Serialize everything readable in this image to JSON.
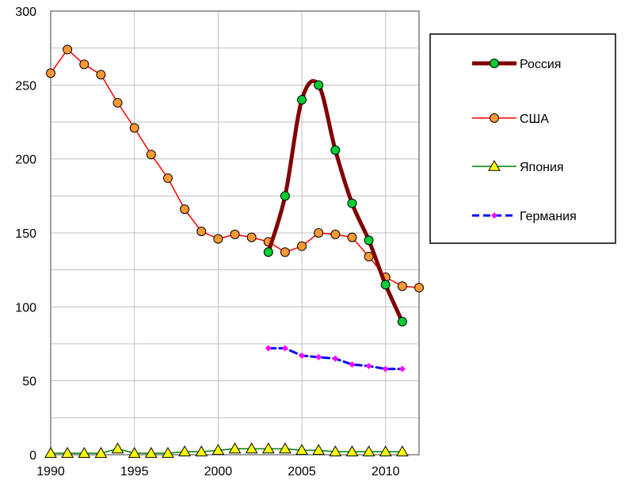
{
  "chart_data": {
    "type": "line",
    "title": "",
    "xlabel": "",
    "ylabel": "",
    "xlim": [
      1990,
      2012
    ],
    "ylim": [
      0,
      300
    ],
    "x_ticks": [
      1990,
      1995,
      2000,
      2005,
      2010
    ],
    "y_ticks": [
      0,
      50,
      100,
      150,
      200,
      250,
      300
    ],
    "grid": true,
    "legend_position": "right",
    "series": [
      {
        "name": "Россия",
        "color": "#800000",
        "marker_fill": "#00cc33",
        "marker": "circle",
        "smooth": true,
        "x": [
          2003,
          2004,
          2005,
          2006,
          2007,
          2008,
          2009,
          2010,
          2011
        ],
        "y": [
          137,
          175,
          240,
          250,
          206,
          170,
          145,
          115,
          90
        ]
      },
      {
        "name": "США",
        "color": "#ff0000",
        "marker_fill": "#ff9933",
        "marker": "circle",
        "smooth": false,
        "x": [
          1990,
          1991,
          1992,
          1993,
          1994,
          1995,
          1996,
          1997,
          1998,
          1999,
          2000,
          2001,
          2002,
          2003,
          2004,
          2005,
          2006,
          2007,
          2008,
          2009,
          2010,
          2011,
          2012
        ],
        "y": [
          258,
          274,
          264,
          257,
          238,
          221,
          203,
          187,
          166,
          151,
          146,
          149,
          147,
          144,
          137,
          141,
          150,
          149,
          147,
          134,
          120,
          114,
          113
        ]
      },
      {
        "name": "Япония",
        "color": "#008000",
        "marker_fill": "#ffff00",
        "marker": "triangle",
        "smooth": false,
        "x": [
          1990,
          1991,
          1992,
          1993,
          1994,
          1995,
          1996,
          1997,
          1998,
          1999,
          2000,
          2001,
          2002,
          2003,
          2004,
          2005,
          2006,
          2007,
          2008,
          2009,
          2010,
          2011
        ],
        "y": [
          1,
          1,
          1,
          1,
          4,
          1,
          1,
          1,
          2,
          2,
          3,
          4,
          4,
          4,
          4,
          3,
          3,
          2,
          2,
          2,
          2,
          2
        ]
      },
      {
        "name": "Германия",
        "color": "#0000ff",
        "marker_fill": "#ff00ff",
        "marker": "diamond",
        "smooth": false,
        "dashed": true,
        "x": [
          2003,
          2004,
          2005,
          2006,
          2007,
          2008,
          2009,
          2010,
          2011
        ],
        "y": [
          72,
          72,
          67,
          66,
          65,
          61,
          60,
          58,
          58
        ]
      }
    ]
  }
}
